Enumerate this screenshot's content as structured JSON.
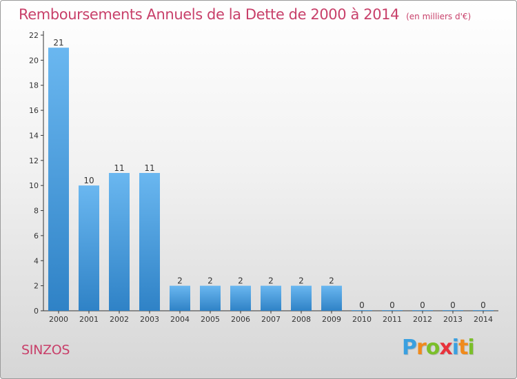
{
  "title": "Remboursements Annuels de la Dette de 2000 à 2014",
  "unit_note": "(en milliers d'€)",
  "place": "SINZOS",
  "brand": {
    "letters": [
      "P",
      "r",
      "o",
      "x",
      "i",
      "t",
      "i"
    ],
    "colors": [
      "#3aa0e0",
      "#f08a1c",
      "#7bbf2a",
      "#e8323c",
      "#3aa0e0",
      "#f08a1c",
      "#7bbf2a"
    ]
  },
  "colors": {
    "bar_top": "#6ab7f0",
    "bar_bottom": "#2f82c6",
    "title": "#c8406a"
  },
  "chart_data": {
    "type": "bar",
    "title": "Remboursements Annuels de la Dette de 2000 à 2014",
    "categories": [
      "2000",
      "2001",
      "2002",
      "2003",
      "2004",
      "2005",
      "2006",
      "2007",
      "2008",
      "2009",
      "2010",
      "2011",
      "2012",
      "2013",
      "2014"
    ],
    "values": [
      21,
      10,
      11,
      11,
      2,
      2,
      2,
      2,
      2,
      2,
      0,
      0,
      0,
      0,
      0
    ],
    "ylim": [
      0,
      22
    ],
    "yticks": [
      0,
      2,
      4,
      6,
      8,
      10,
      12,
      14,
      16,
      18,
      20,
      22
    ],
    "grid": false,
    "data_labels": true
  }
}
